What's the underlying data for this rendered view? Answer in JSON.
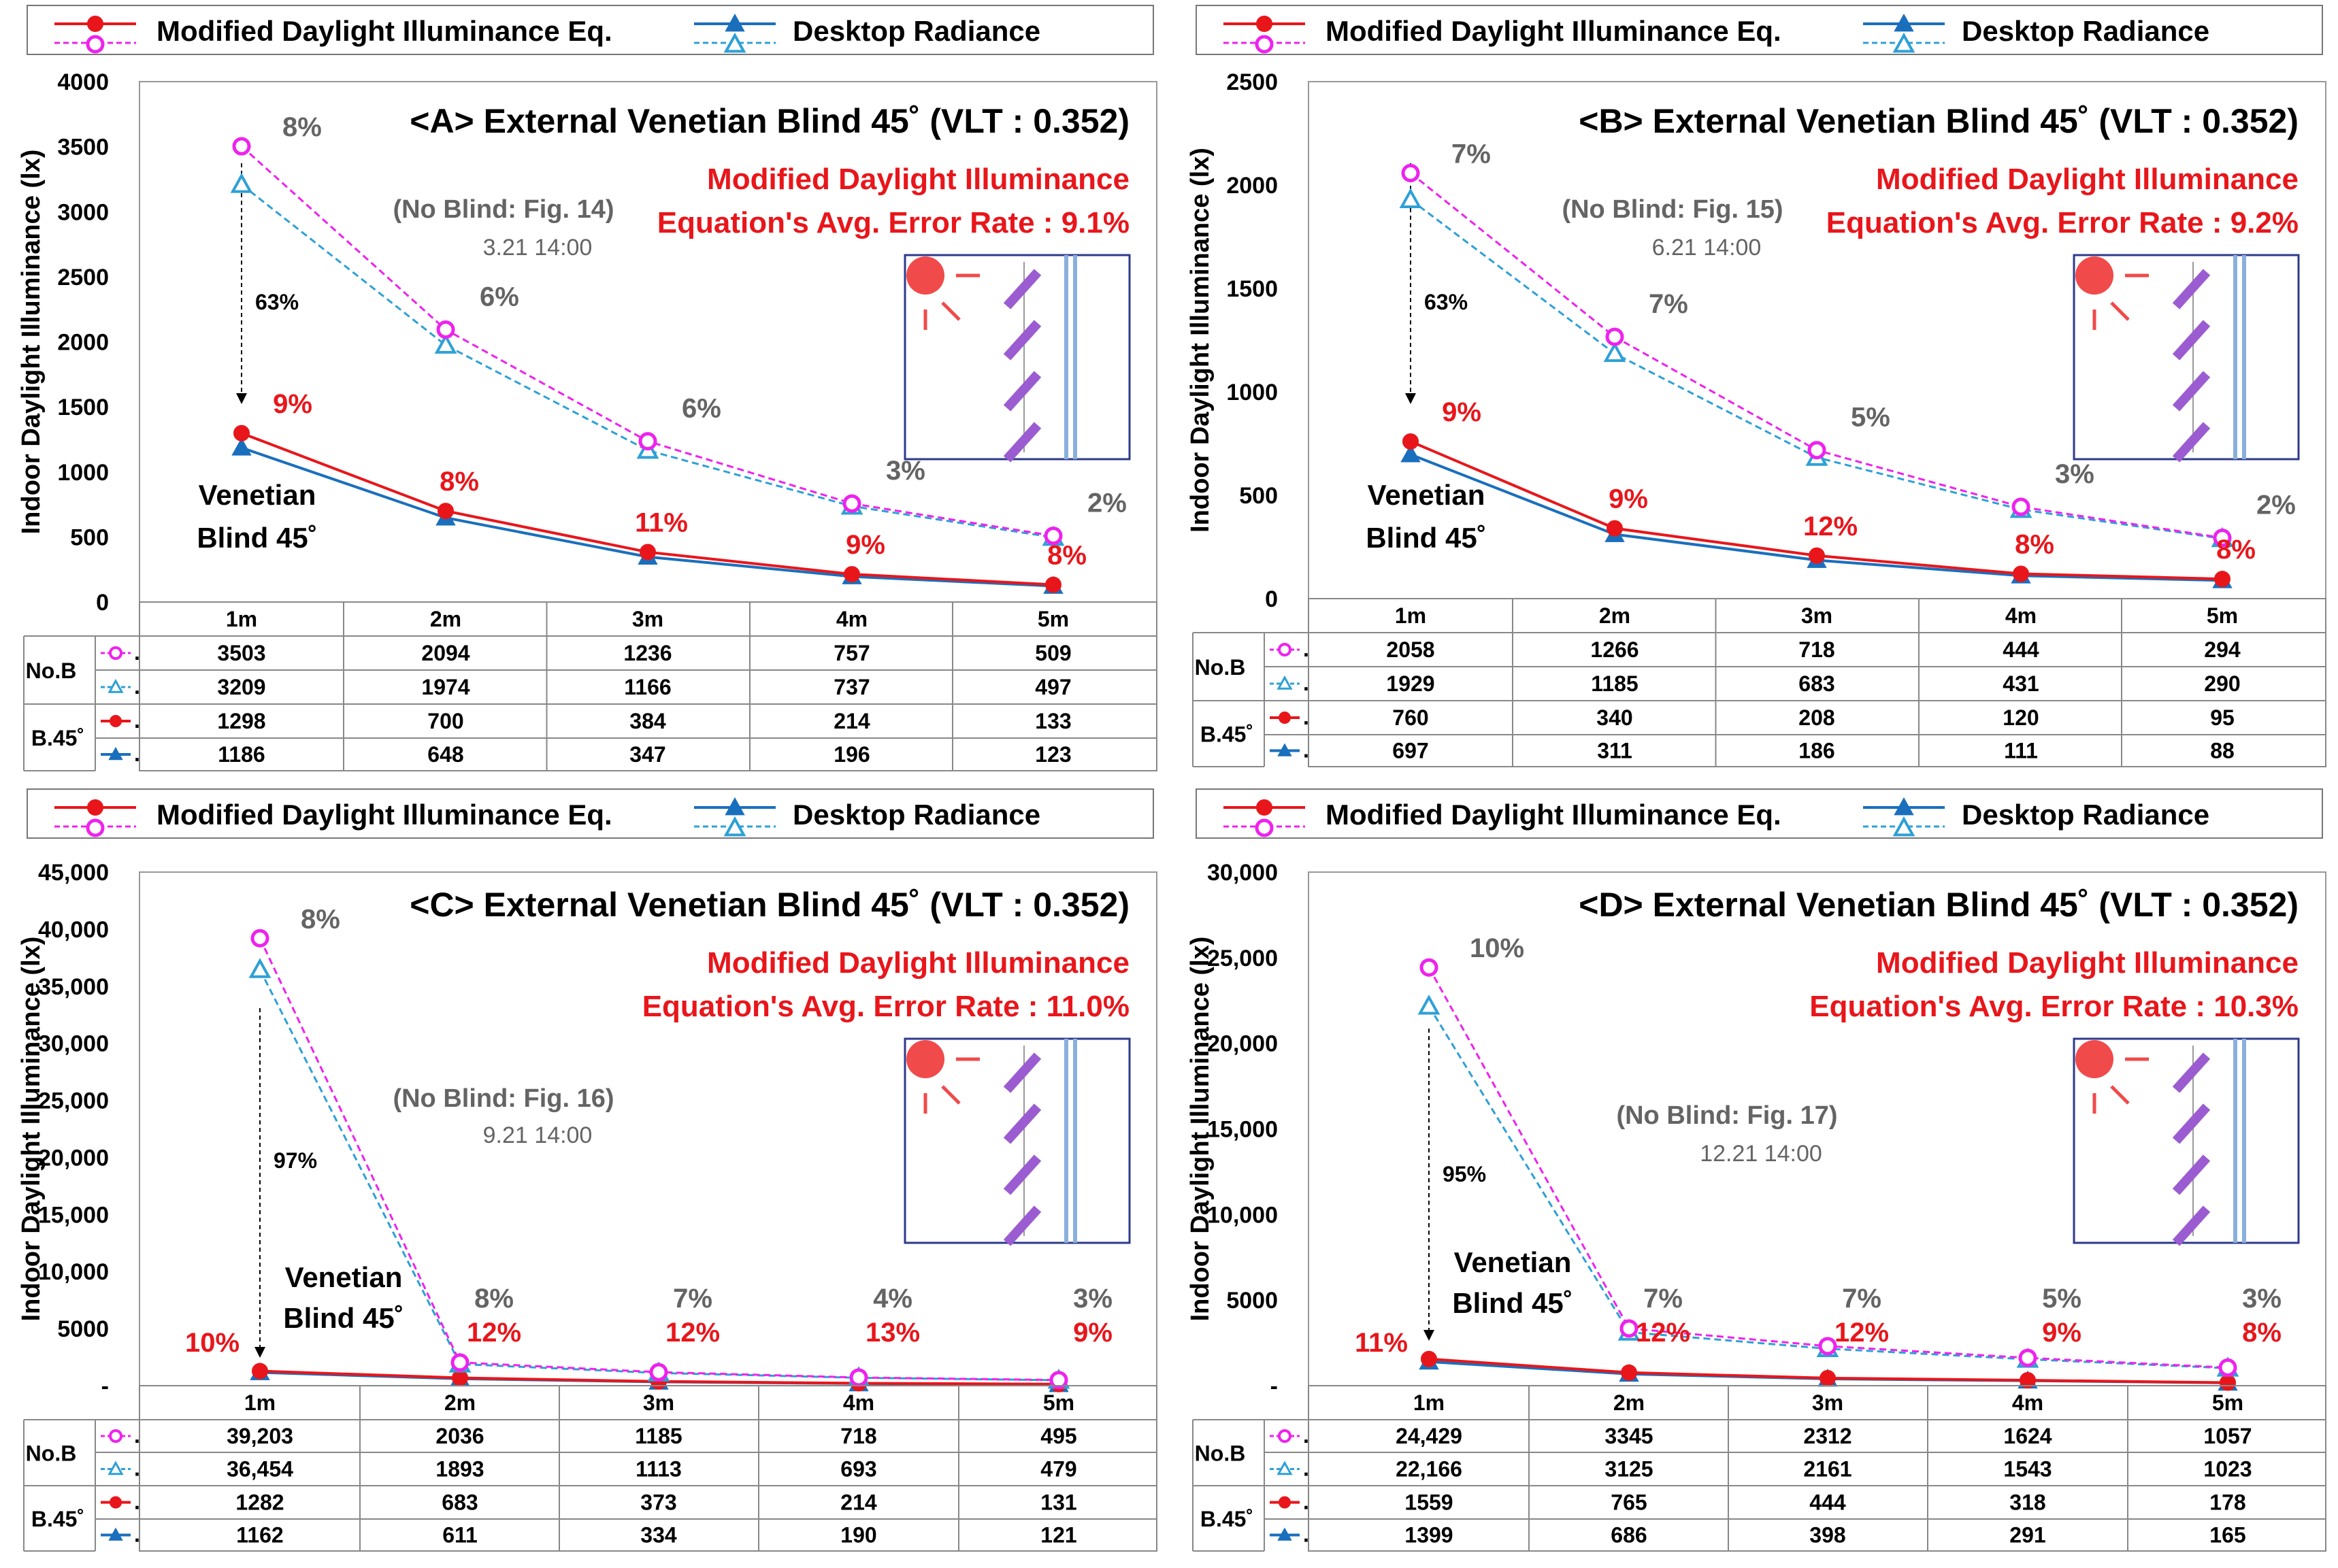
{
  "legend": {
    "modified": "Modified Daylight Illuminance Eq.",
    "desktop": "Desktop Radiance"
  },
  "colors": {
    "modified": "#e8161b",
    "modified_noblind": "#ee22ee",
    "desktop": "#1a6fbd",
    "desktop_noblind": "#2ea0d6",
    "error_text": "#e8161b",
    "gray_text": "#646464",
    "blind": "#9b5cd1",
    "glass": "#89b0dc",
    "sun": "#f04a4a"
  },
  "table_labels": {
    "no_blind": "No.B",
    "blind": "B.45˚",
    "row_suffix": "."
  },
  "ylabel": "Indoor Daylight Illuminance (lx)",
  "chart_data": [
    {
      "type": "line",
      "title": "<A> External Venetian Blind 45˚ (VLT : 0.352)",
      "error_line1": "Modified Daylight Illuminance",
      "error_line2": "Equation's Avg. Error Rate : 9.1%",
      "no_blind_note": "(No Blind: Fig. 14)",
      "date": "3.21 14:00",
      "drop_label": "63%",
      "venetian_label": [
        "Venetian",
        "Blind 45˚"
      ],
      "categories": [
        "1m",
        "2m",
        "3m",
        "4m",
        "5m"
      ],
      "ylim": [
        0,
        4000
      ],
      "yticks": [
        "0",
        "500",
        "1000",
        "1500",
        "2000",
        "2500",
        "3000",
        "3500",
        "4000"
      ],
      "series": [
        {
          "name": "Modified No Blind",
          "values": [
            3503,
            2094,
            1236,
            757,
            509
          ]
        },
        {
          "name": "Desktop No Blind",
          "values": [
            3209,
            1974,
            1166,
            737,
            497
          ]
        },
        {
          "name": "Modified Blind 45",
          "values": [
            1298,
            700,
            384,
            214,
            133
          ]
        },
        {
          "name": "Desktop Blind 45",
          "values": [
            1186,
            648,
            347,
            196,
            123
          ]
        }
      ],
      "table_text": [
        [
          "3503",
          "2094",
          "1236",
          "757",
          "509"
        ],
        [
          "3209",
          "1974",
          "1166",
          "737",
          "497"
        ],
        [
          "1298",
          "700",
          "384",
          "214",
          "133"
        ],
        [
          "1186",
          "648",
          "347",
          "196",
          "123"
        ]
      ],
      "err_noblind": [
        "8%",
        "6%",
        "6%",
        "3%",
        "2%"
      ],
      "err_blind": [
        "9%",
        "8%",
        "11%",
        "9%",
        "8%"
      ]
    },
    {
      "type": "line",
      "title": "<B> External Venetian Blind 45˚ (VLT : 0.352)",
      "error_line1": "Modified Daylight Illuminance",
      "error_line2": "Equation's Avg. Error Rate : 9.2%",
      "no_blind_note": "(No Blind: Fig. 15)",
      "date": "6.21 14:00",
      "drop_label": "63%",
      "venetian_label": [
        "Venetian",
        "Blind 45˚"
      ],
      "categories": [
        "1m",
        "2m",
        "3m",
        "4m",
        "5m"
      ],
      "ylim": [
        0,
        2500
      ],
      "yticks": [
        "0",
        "500",
        "1000",
        "1500",
        "2000",
        "2500"
      ],
      "series": [
        {
          "name": "Modified No Blind",
          "values": [
            2058,
            1266,
            718,
            444,
            294
          ]
        },
        {
          "name": "Desktop No Blind",
          "values": [
            1929,
            1185,
            683,
            431,
            290
          ]
        },
        {
          "name": "Modified Blind 45",
          "values": [
            760,
            340,
            208,
            120,
            95
          ]
        },
        {
          "name": "Desktop Blind 45",
          "values": [
            697,
            311,
            186,
            111,
            88
          ]
        }
      ],
      "table_text": [
        [
          "2058",
          "1266",
          "718",
          "444",
          "294"
        ],
        [
          "1929",
          "1185",
          "683",
          "431",
          "290"
        ],
        [
          "760",
          "340",
          "208",
          "120",
          "95"
        ],
        [
          "697",
          "311",
          "186",
          "111",
          "88"
        ]
      ],
      "err_noblind": [
        "7%",
        "7%",
        "5%",
        "3%",
        "2%"
      ],
      "err_blind": [
        "9%",
        "9%",
        "12%",
        "8%",
        "8%"
      ]
    },
    {
      "type": "line",
      "title": "<C> External Venetian Blind 45˚ (VLT : 0.352)",
      "error_line1": "Modified Daylight Illuminance",
      "error_line2": "Equation's Avg. Error Rate : 11.0%",
      "no_blind_note": "(No Blind: Fig. 16)",
      "date": "9.21 14:00",
      "drop_label": "97%",
      "venetian_label": [
        "Venetian",
        "Blind 45˚"
      ],
      "categories": [
        "1m",
        "2m",
        "3m",
        "4m",
        "5m"
      ],
      "ylim": [
        0,
        45000
      ],
      "yticks": [
        "-",
        "5000",
        "10,000",
        "15,000",
        "20,000",
        "25,000",
        "30,000",
        "35,000",
        "40,000",
        "45,000"
      ],
      "series": [
        {
          "name": "Modified No Blind",
          "values": [
            39203,
            2036,
            1185,
            718,
            495
          ]
        },
        {
          "name": "Desktop No Blind",
          "values": [
            36454,
            1893,
            1113,
            693,
            479
          ]
        },
        {
          "name": "Modified Blind 45",
          "values": [
            1282,
            683,
            373,
            214,
            131
          ]
        },
        {
          "name": "Desktop Blind 45",
          "values": [
            1162,
            611,
            334,
            190,
            121
          ]
        }
      ],
      "table_text": [
        [
          "39,203",
          "2036",
          "1185",
          "718",
          "495"
        ],
        [
          "36,454",
          "1893",
          "1113",
          "693",
          "479"
        ],
        [
          "1282",
          "683",
          "373",
          "214",
          "131"
        ],
        [
          "1162",
          "611",
          "334",
          "190",
          "121"
        ]
      ],
      "err_noblind": [
        "8%",
        "8%",
        "7%",
        "4%",
        "3%"
      ],
      "err_blind": [
        "10%",
        "12%",
        "12%",
        "13%",
        "9%"
      ]
    },
    {
      "type": "line",
      "title": "<D> External Venetian Blind 45˚ (VLT : 0.352)",
      "error_line1": "Modified Daylight Illuminance",
      "error_line2": "Equation's Avg. Error Rate : 10.3%",
      "no_blind_note": "(No Blind: Fig. 17)",
      "date": "12.21 14:00",
      "drop_label": "95%",
      "venetian_label": [
        "Venetian",
        "Blind 45˚"
      ],
      "categories": [
        "1m",
        "2m",
        "3m",
        "4m",
        "5m"
      ],
      "ylim": [
        0,
        30000
      ],
      "yticks": [
        "-",
        "5000",
        "10,000",
        "15,000",
        "20,000",
        "25,000",
        "30,000"
      ],
      "series": [
        {
          "name": "Modified No Blind",
          "values": [
            24429,
            3345,
            2312,
            1624,
            1057
          ]
        },
        {
          "name": "Desktop No Blind",
          "values": [
            22166,
            3125,
            2161,
            1543,
            1023
          ]
        },
        {
          "name": "Modified Blind 45",
          "values": [
            1559,
            765,
            444,
            318,
            178
          ]
        },
        {
          "name": "Desktop Blind 45",
          "values": [
            1399,
            686,
            398,
            291,
            165
          ]
        }
      ],
      "table_text": [
        [
          "24,429",
          "3345",
          "2312",
          "1624",
          "1057"
        ],
        [
          "22,166",
          "3125",
          "2161",
          "1543",
          "1023"
        ],
        [
          "1559",
          "765",
          "444",
          "318",
          "178"
        ],
        [
          "1399",
          "686",
          "398",
          "291",
          "165"
        ]
      ],
      "err_noblind": [
        "10%",
        "7%",
        "7%",
        "5%",
        "3%"
      ],
      "err_blind": [
        "11%",
        "12%",
        "12%",
        "9%",
        "8%"
      ]
    }
  ]
}
